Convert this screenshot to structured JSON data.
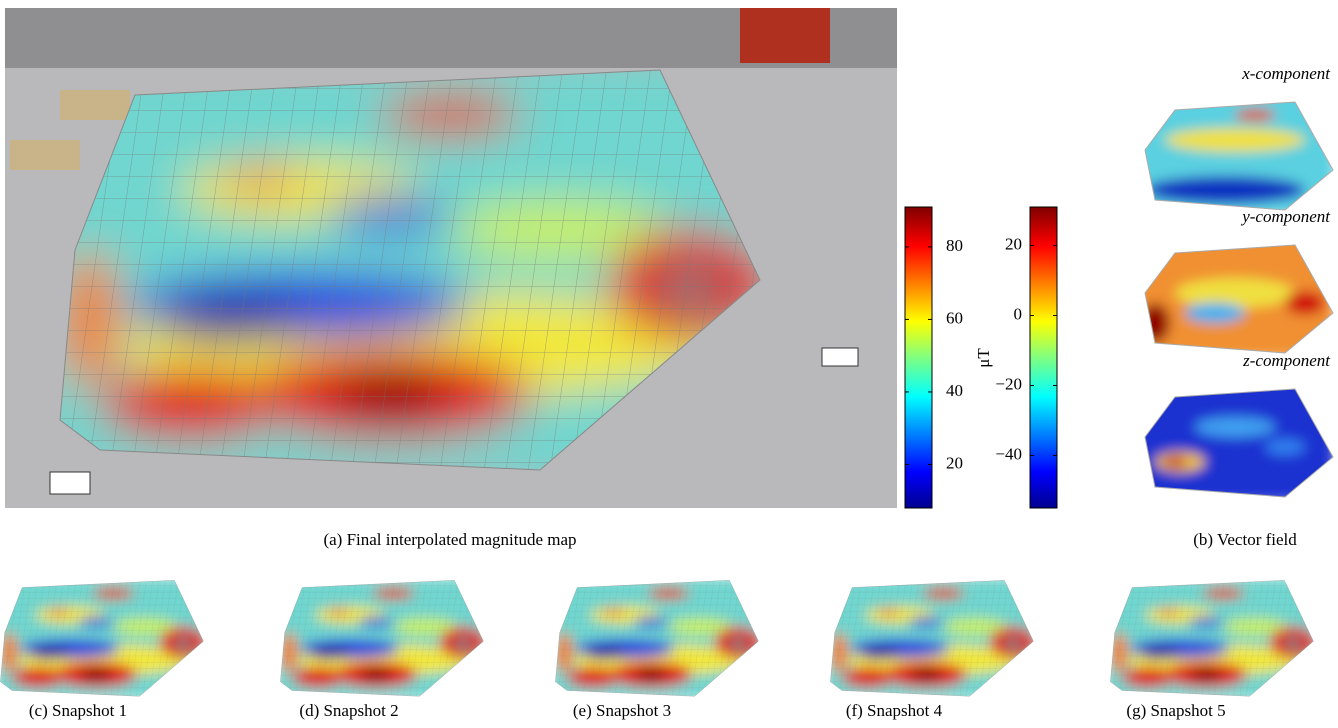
{
  "panel_a": {
    "caption": "(a) Final interpolated magnitude map",
    "colorbar": {
      "label": "μT",
      "range": [
        8,
        91
      ],
      "ticks": [
        20,
        40,
        60,
        80
      ]
    }
  },
  "panel_b": {
    "caption": "(b) Vector field",
    "colorbar": {
      "range": [
        -55,
        31
      ],
      "ticks": [
        {
          "value": -40,
          "label": "−40"
        },
        {
          "value": -20,
          "label": "−20"
        },
        0,
        20
      ]
    },
    "components": [
      "x-component",
      "y-component",
      "z-component"
    ]
  },
  "snapshots": [
    "(c) Snapshot 1",
    "(d) Snapshot 2",
    "(e) Snapshot 3",
    "(f) Snapshot 4",
    "(g) Snapshot 5"
  ]
}
